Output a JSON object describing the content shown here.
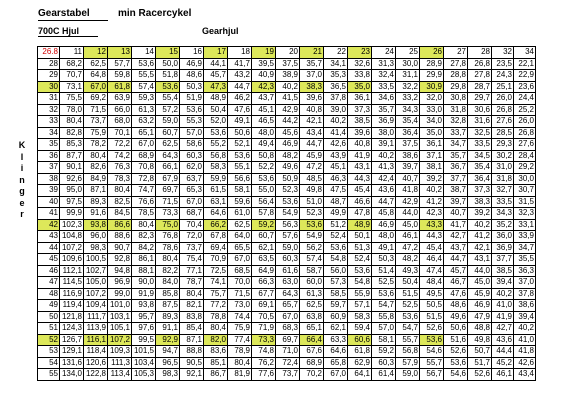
{
  "header": {
    "title_left": "Gearstabel",
    "title_right": "min Racercykel",
    "wheel_label": "700C Hjul",
    "gear_label": "Gearhjul",
    "side_label": "Klinger"
  },
  "colors": {
    "highlight": "#dde85a",
    "corner_text": "#d00000"
  },
  "table": {
    "corner": "26.8",
    "columns": [
      "11",
      "12",
      "13",
      "14",
      "15",
      "16",
      "17",
      "18",
      "19",
      "20",
      "21",
      "22",
      "23",
      "24",
      "25",
      "26",
      "27",
      "28",
      "32",
      "34"
    ],
    "highlight_columns": [
      "12",
      "13",
      "15",
      "17",
      "19",
      "21",
      "23",
      "26"
    ],
    "highlight_rows": [
      "30",
      "42",
      "52"
    ],
    "rows": [
      {
        "label": "28",
        "values": [
          "68,2",
          "62,5",
          "57,7",
          "53,6",
          "50,0",
          "46,9",
          "44,1",
          "41,7",
          "39,5",
          "37,5",
          "35,7",
          "34,1",
          "32,6",
          "31,3",
          "30,0",
          "28,9",
          "27,8",
          "26,8",
          "23,5",
          "22,1"
        ]
      },
      {
        "label": "29",
        "values": [
          "70,7",
          "64,8",
          "59,8",
          "55,5",
          "51,8",
          "48,6",
          "45,7",
          "43,2",
          "40,9",
          "38,9",
          "37,0",
          "35,3",
          "33,8",
          "32,4",
          "31,1",
          "29,9",
          "28,8",
          "27,8",
          "24,3",
          "22,9"
        ]
      },
      {
        "label": "30",
        "values": [
          "73,1",
          "67,0",
          "61,8",
          "57,4",
          "53,6",
          "50,3",
          "47,3",
          "44,7",
          "42,3",
          "40,2",
          "38,3",
          "36,5",
          "35,0",
          "33,5",
          "32,2",
          "30,9",
          "29,8",
          "28,7",
          "25,1",
          "23,6"
        ]
      },
      {
        "label": "31",
        "values": [
          "75,5",
          "69,2",
          "63,9",
          "59,3",
          "55,4",
          "51,9",
          "48,9",
          "46,2",
          "43,7",
          "41,5",
          "39,6",
          "37,8",
          "36,1",
          "34,6",
          "33,2",
          "32,0",
          "30,8",
          "29,7",
          "26,0",
          "24,4"
        ]
      },
      {
        "label": "32",
        "values": [
          "78,0",
          "71,5",
          "66,0",
          "61,3",
          "57,2",
          "53,6",
          "50,4",
          "47,6",
          "45,1",
          "42,9",
          "40,8",
          "39,0",
          "37,3",
          "35,7",
          "34,3",
          "33,0",
          "31,8",
          "30,6",
          "26,8",
          "25,2"
        ]
      },
      {
        "label": "33",
        "values": [
          "80,4",
          "73,7",
          "68,0",
          "63,2",
          "59,0",
          "55,3",
          "52,0",
          "49,1",
          "46,5",
          "44,2",
          "42,1",
          "40,2",
          "38,5",
          "36,9",
          "35,4",
          "34,0",
          "32,8",
          "31,6",
          "27,6",
          "26,0"
        ]
      },
      {
        "label": "34",
        "values": [
          "82,8",
          "75,9",
          "70,1",
          "65,1",
          "60,7",
          "57,0",
          "53,6",
          "50,6",
          "48,0",
          "45,6",
          "43,4",
          "41,4",
          "39,6",
          "38,0",
          "36,4",
          "35,0",
          "33,7",
          "32,5",
          "28,5",
          "26,8"
        ]
      },
      {
        "label": "35",
        "values": [
          "85,3",
          "78,2",
          "72,2",
          "67,0",
          "62,5",
          "58,6",
          "55,2",
          "52,1",
          "49,4",
          "46,9",
          "44,7",
          "42,6",
          "40,8",
          "39,1",
          "37,5",
          "36,1",
          "34,7",
          "33,5",
          "29,3",
          "27,6"
        ]
      },
      {
        "label": "36",
        "values": [
          "87,7",
          "80,4",
          "74,2",
          "68,9",
          "64,3",
          "60,3",
          "56,8",
          "53,6",
          "50,8",
          "48,2",
          "45,9",
          "43,9",
          "41,9",
          "40,2",
          "38,6",
          "37,1",
          "35,7",
          "34,5",
          "30,2",
          "28,4"
        ]
      },
      {
        "label": "37",
        "values": [
          "90,1",
          "82,6",
          "76,3",
          "70,8",
          "66,1",
          "62,0",
          "58,3",
          "55,1",
          "52,2",
          "49,6",
          "47,2",
          "45,1",
          "43,1",
          "41,3",
          "39,7",
          "38,1",
          "36,7",
          "35,4",
          "31,0",
          "29,2"
        ]
      },
      {
        "label": "38",
        "values": [
          "92,6",
          "84,9",
          "78,3",
          "72,8",
          "67,9",
          "63,7",
          "59,9",
          "56,6",
          "53,6",
          "50,9",
          "48,5",
          "46,3",
          "44,3",
          "42,4",
          "40,7",
          "39,2",
          "37,7",
          "36,4",
          "31,8",
          "30,0"
        ]
      },
      {
        "label": "39",
        "values": [
          "95,0",
          "87,1",
          "80,4",
          "74,7",
          "69,7",
          "65,3",
          "61,5",
          "58,1",
          "55,0",
          "52,3",
          "49,8",
          "47,5",
          "45,4",
          "43,6",
          "41,8",
          "40,2",
          "38,7",
          "37,3",
          "32,7",
          "30,7"
        ]
      },
      {
        "label": "40",
        "values": [
          "97,5",
          "89,3",
          "82,5",
          "76,6",
          "71,5",
          "67,0",
          "63,1",
          "59,6",
          "56,4",
          "53,6",
          "51,0",
          "48,7",
          "46,6",
          "44,7",
          "42,9",
          "41,2",
          "39,7",
          "38,3",
          "33,5",
          "31,5"
        ]
      },
      {
        "label": "41",
        "values": [
          "99,9",
          "91,6",
          "84,5",
          "78,5",
          "73,3",
          "68,7",
          "64,6",
          "61,0",
          "57,8",
          "54,9",
          "52,3",
          "49,9",
          "47,8",
          "45,8",
          "44,0",
          "42,3",
          "40,7",
          "39,2",
          "34,3",
          "32,3"
        ]
      },
      {
        "label": "42",
        "values": [
          "102,3",
          "93,8",
          "86,6",
          "80,4",
          "75,0",
          "70,4",
          "66,2",
          "62,5",
          "59,2",
          "56,3",
          "53,6",
          "51,2",
          "48,9",
          "46,9",
          "45,0",
          "43,3",
          "41,7",
          "40,2",
          "35,2",
          "33,1"
        ]
      },
      {
        "label": "43",
        "values": [
          "104,8",
          "96,0",
          "88,6",
          "82,3",
          "76,8",
          "72,0",
          "67,8",
          "64,0",
          "60,7",
          "57,6",
          "54,9",
          "52,4",
          "50,1",
          "48,0",
          "46,1",
          "44,3",
          "42,7",
          "41,2",
          "36,0",
          "33,9"
        ]
      },
      {
        "label": "44",
        "values": [
          "107,2",
          "98,3",
          "90,7",
          "84,2",
          "78,6",
          "73,7",
          "69,4",
          "65,5",
          "62,1",
          "59,0",
          "56,2",
          "53,6",
          "51,3",
          "49,1",
          "47,2",
          "45,4",
          "43,7",
          "42,1",
          "36,9",
          "34,7"
        ]
      },
      {
        "label": "45",
        "values": [
          "109,6",
          "100,5",
          "92,8",
          "86,1",
          "80,4",
          "75,4",
          "70,9",
          "67,0",
          "63,5",
          "60,3",
          "57,4",
          "54,8",
          "52,4",
          "50,3",
          "48,2",
          "46,4",
          "44,7",
          "43,1",
          "37,7",
          "35,5"
        ]
      },
      {
        "label": "46",
        "values": [
          "112,1",
          "102,7",
          "94,8",
          "88,1",
          "82,2",
          "77,1",
          "72,5",
          "68,5",
          "64,9",
          "61,6",
          "58,7",
          "56,0",
          "53,6",
          "51,4",
          "49,3",
          "47,4",
          "45,7",
          "44,0",
          "38,5",
          "36,3"
        ]
      },
      {
        "label": "47",
        "values": [
          "114,5",
          "105,0",
          "96,9",
          "90,0",
          "84,0",
          "78,7",
          "74,1",
          "70,0",
          "66,3",
          "63,0",
          "60,0",
          "57,3",
          "54,8",
          "52,5",
          "50,4",
          "48,4",
          "46,7",
          "45,0",
          "39,4",
          "37,0"
        ]
      },
      {
        "label": "48",
        "values": [
          "116,9",
          "107,2",
          "99,0",
          "91,9",
          "85,8",
          "80,4",
          "75,7",
          "71,5",
          "67,7",
          "64,3",
          "61,3",
          "58,5",
          "55,9",
          "53,6",
          "51,5",
          "49,5",
          "47,6",
          "45,9",
          "40,2",
          "37,8"
        ]
      },
      {
        "label": "49",
        "values": [
          "119,4",
          "109,4",
          "101,0",
          "93,8",
          "87,5",
          "82,1",
          "77,2",
          "73,0",
          "69,1",
          "65,7",
          "62,5",
          "59,7",
          "57,1",
          "54,7",
          "52,5",
          "50,5",
          "48,6",
          "46,9",
          "41,0",
          "38,6"
        ]
      },
      {
        "label": "50",
        "values": [
          "121,8",
          "111,7",
          "103,1",
          "95,7",
          "89,3",
          "83,8",
          "78,8",
          "74,4",
          "70,5",
          "67,0",
          "63,8",
          "60,9",
          "58,3",
          "55,8",
          "53,6",
          "51,5",
          "49,6",
          "47,9",
          "41,9",
          "39,4"
        ]
      },
      {
        "label": "51",
        "values": [
          "124,3",
          "113,9",
          "105,1",
          "97,6",
          "91,1",
          "85,4",
          "80,4",
          "75,9",
          "71,9",
          "68,3",
          "65,1",
          "62,1",
          "59,4",
          "57,0",
          "54,7",
          "52,6",
          "50,6",
          "48,8",
          "42,7",
          "40,2"
        ]
      },
      {
        "label": "52",
        "values": [
          "126,7",
          "116,1",
          "107,2",
          "99,5",
          "92,9",
          "87,1",
          "82,0",
          "77,4",
          "73,3",
          "69,7",
          "66,4",
          "63,3",
          "60,6",
          "58,1",
          "55,7",
          "53,6",
          "51,6",
          "49,8",
          "43,6",
          "41,0"
        ]
      },
      {
        "label": "53",
        "values": [
          "129,1",
          "118,4",
          "109,3",
          "101,5",
          "94,7",
          "88,8",
          "83,6",
          "78,9",
          "74,8",
          "71,0",
          "67,6",
          "64,6",
          "61,8",
          "59,2",
          "56,8",
          "54,6",
          "52,6",
          "50,7",
          "44,4",
          "41,8"
        ]
      },
      {
        "label": "54",
        "values": [
          "131,6",
          "120,6",
          "111,3",
          "103,4",
          "96,5",
          "90,5",
          "85,1",
          "80,4",
          "76,2",
          "72,4",
          "68,9",
          "65,8",
          "62,9",
          "60,3",
          "57,9",
          "55,7",
          "53,6",
          "51,7",
          "45,2",
          "42,6"
        ]
      },
      {
        "label": "55",
        "values": [
          "134,0",
          "122,8",
          "113,4",
          "105,3",
          "98,3",
          "92,1",
          "86,7",
          "81,9",
          "77,6",
          "73,7",
          "70,2",
          "67,0",
          "64,1",
          "61,4",
          "59,0",
          "56,7",
          "54,6",
          "52,6",
          "46,1",
          "43,4"
        ]
      }
    ]
  }
}
